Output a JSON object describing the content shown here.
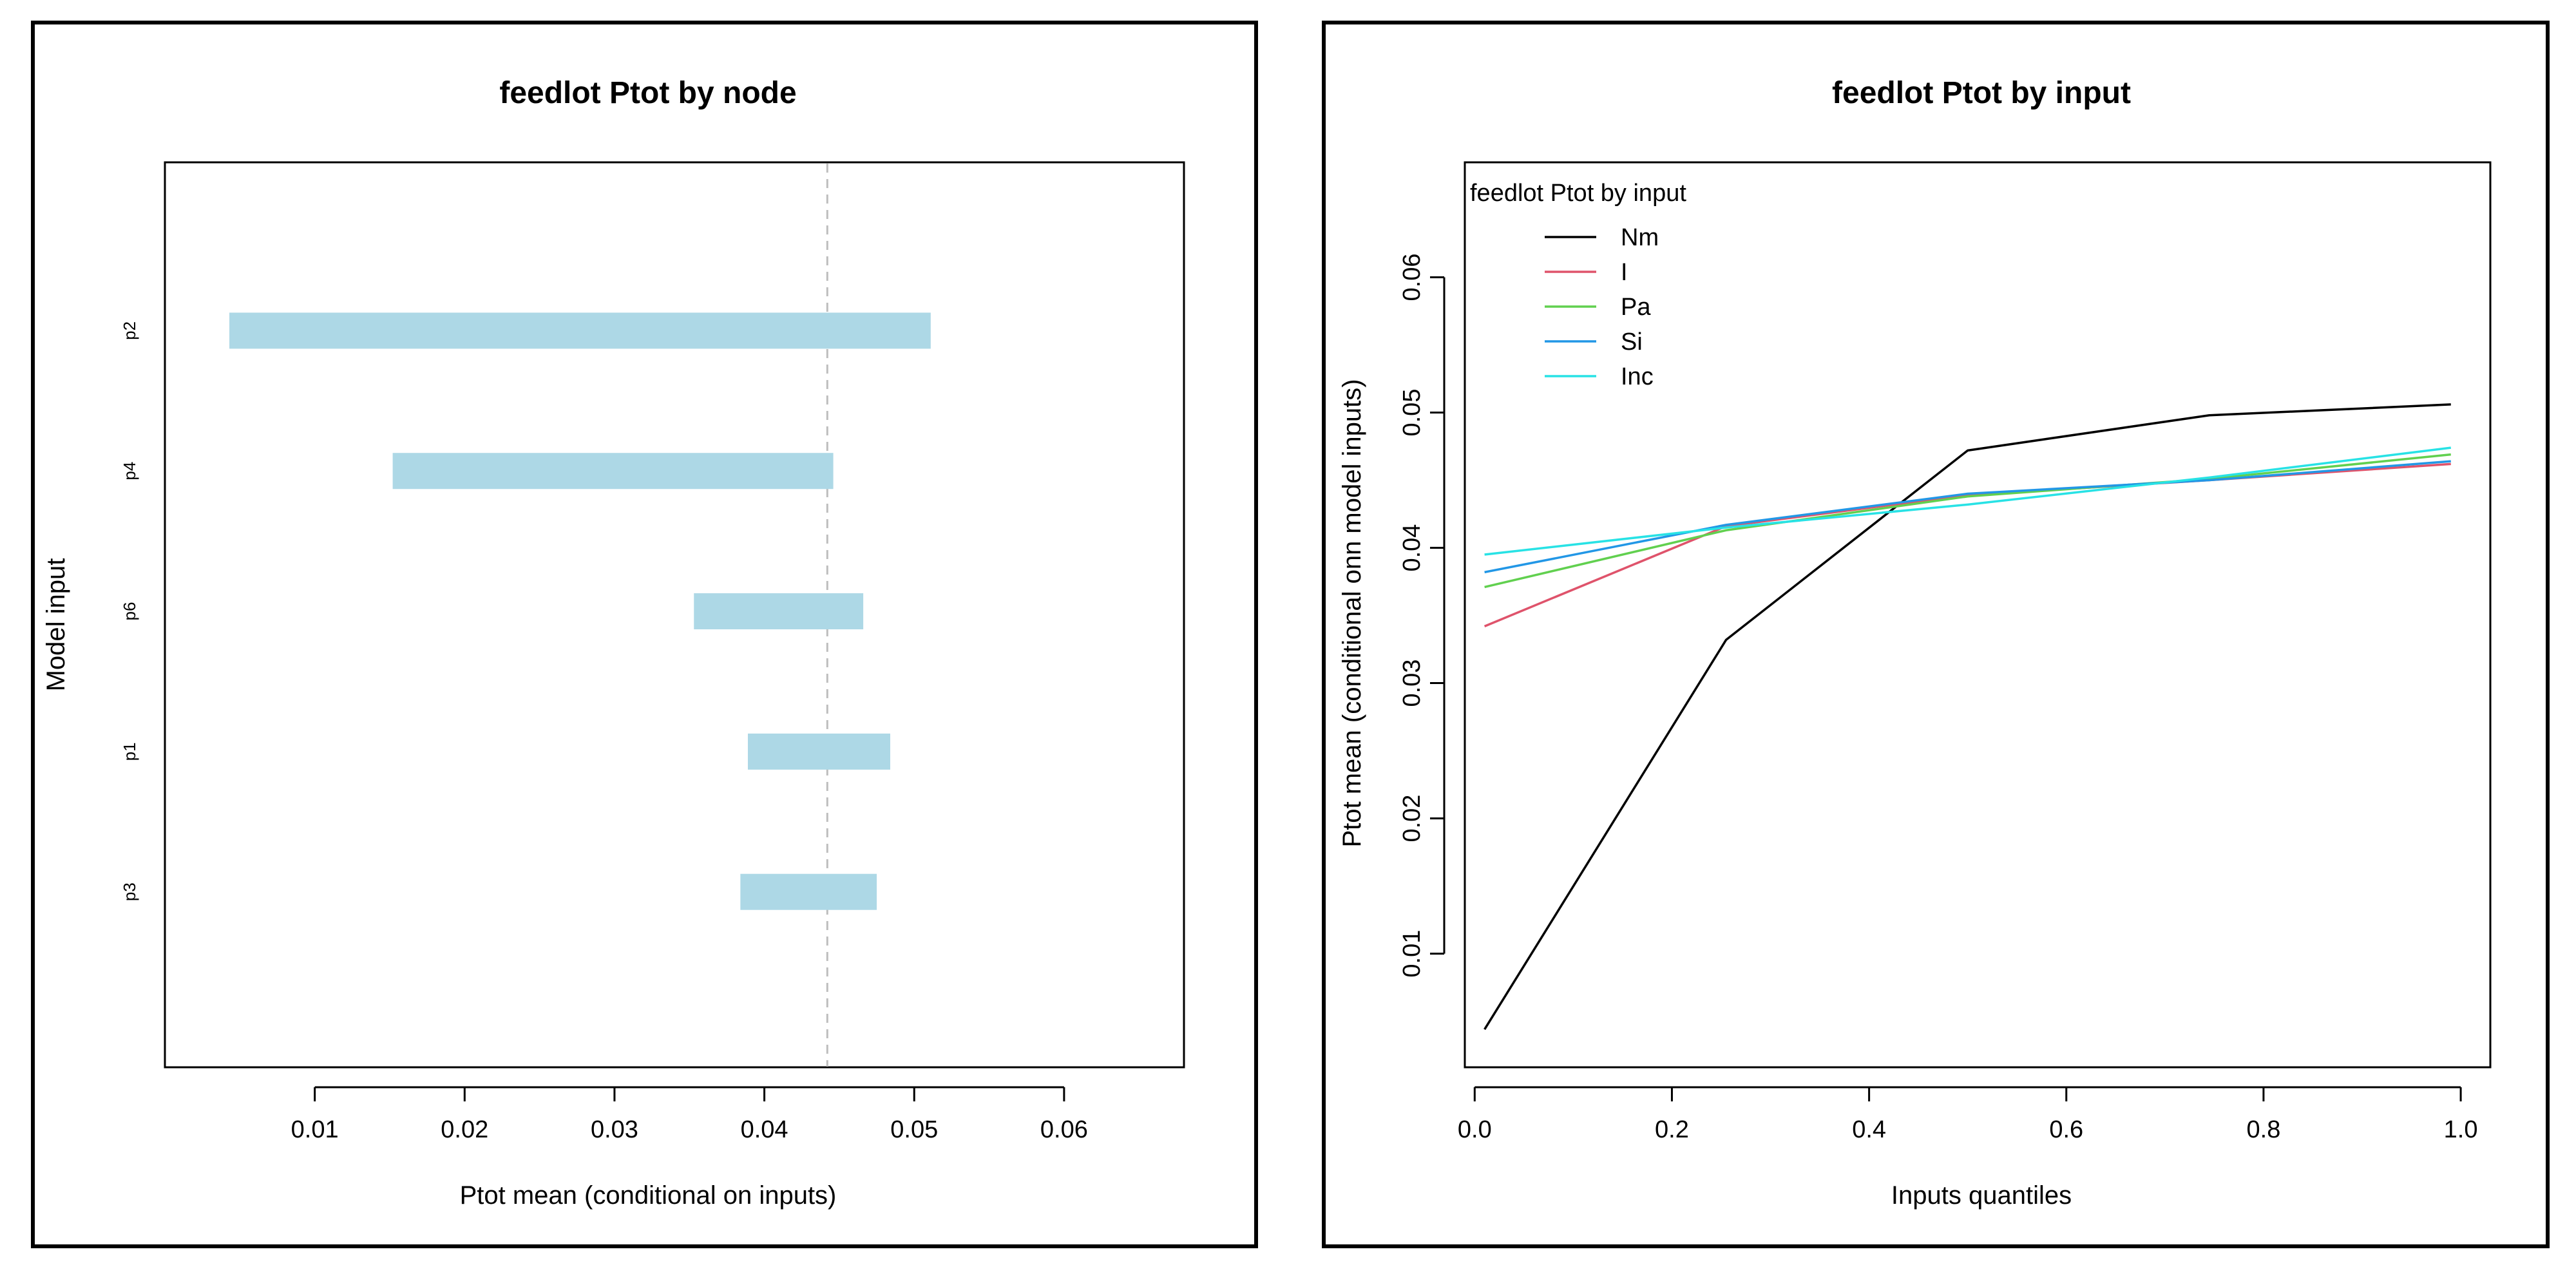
{
  "colors": {
    "bar": "#add8e6",
    "Nm": "#000000",
    "I": "#df536b",
    "Pa": "#61d04f",
    "Si": "#2297e6",
    "Inc": "#28e2e5",
    "reference_line": "#bebebe"
  },
  "chart_data": [
    {
      "type": "bar",
      "orientation": "horizontal-range",
      "title": "feedlot Ptot by node",
      "xlabel": "Ptot mean (conditional on inputs)",
      "ylabel": "Model input",
      "xlim": [
        0.0,
        0.068
      ],
      "x_ticks": [
        "0.01",
        "0.02",
        "0.03",
        "0.04",
        "0.05",
        "0.06"
      ],
      "reference_line": 0.0442,
      "categories": [
        "p2",
        "p4",
        "p6",
        "p1",
        "p3"
      ],
      "ranges": [
        {
          "label": "p2",
          "min": 0.0043,
          "max": 0.0511
        },
        {
          "label": "p4",
          "min": 0.0152,
          "max": 0.0446
        },
        {
          "label": "p6",
          "min": 0.0353,
          "max": 0.0466
        },
        {
          "label": "p1",
          "min": 0.0389,
          "max": 0.0484
        },
        {
          "label": "p3",
          "min": 0.0384,
          "max": 0.0475
        }
      ]
    },
    {
      "type": "line",
      "title": "feedlot Ptot by input",
      "xlabel": "Inputs quantiles",
      "ylabel": "Ptot mean (conditional onn model inputs)",
      "xlim": [
        -0.01,
        1.03
      ],
      "ylim": [
        0.0016,
        0.0685
      ],
      "x_ticks": [
        "0.0",
        "0.2",
        "0.4",
        "0.6",
        "0.8",
        "1.0"
      ],
      "y_ticks": [
        "0.01",
        "0.02",
        "0.03",
        "0.04",
        "0.05",
        "0.06"
      ],
      "legend_title": "feedlot Ptot by input",
      "legend_position": "top-left",
      "x": [
        0.01,
        0.255,
        0.5,
        0.745,
        0.99
      ],
      "series": [
        {
          "name": "Nm",
          "values": [
            0.0044,
            0.0332,
            0.0472,
            0.0498,
            0.0506
          ]
        },
        {
          "name": "I",
          "values": [
            0.0342,
            0.0416,
            0.0439,
            0.045,
            0.0462
          ]
        },
        {
          "name": "Pa",
          "values": [
            0.0371,
            0.0413,
            0.0438,
            0.0451,
            0.0469
          ]
        },
        {
          "name": "Si",
          "values": [
            0.0382,
            0.0417,
            0.044,
            0.045,
            0.0464
          ]
        },
        {
          "name": "Inc",
          "values": [
            0.0395,
            0.0415,
            0.0432,
            0.0452,
            0.0474
          ]
        }
      ]
    }
  ]
}
